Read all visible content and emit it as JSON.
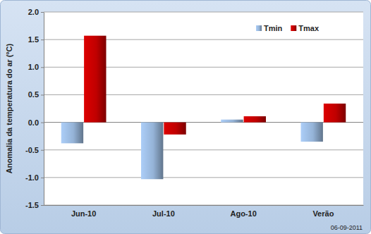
{
  "chart_data": {
    "type": "bar",
    "categories": [
      "Jun-10",
      "Jul-10",
      "Ago-10",
      "Verão"
    ],
    "series": [
      {
        "name": "Tmin",
        "color": "#95b3d7",
        "values": [
          -0.38,
          -1.03,
          0.05,
          -0.35
        ]
      },
      {
        "name": "Tmax",
        "color": "#c00000",
        "values": [
          1.57,
          -0.22,
          0.11,
          0.34
        ]
      }
    ],
    "y_label": "Anomalia da temperatura do ar (ºC)",
    "ylim": [
      -1.5,
      2.0
    ],
    "yticks": [
      -1.5,
      {
        "value": -1.0,
        "label": "-1.0"
      },
      -0.5,
      {
        "value": 0.0,
        "label": "0.0"
      },
      0.5,
      {
        "value": 1.0,
        "label": "1.0"
      },
      1.5,
      {
        "value": 2.0,
        "label": "2.0"
      }
    ],
    "grid": true,
    "legend": "upper right",
    "annotations": [
      "06-09-2011"
    ]
  }
}
